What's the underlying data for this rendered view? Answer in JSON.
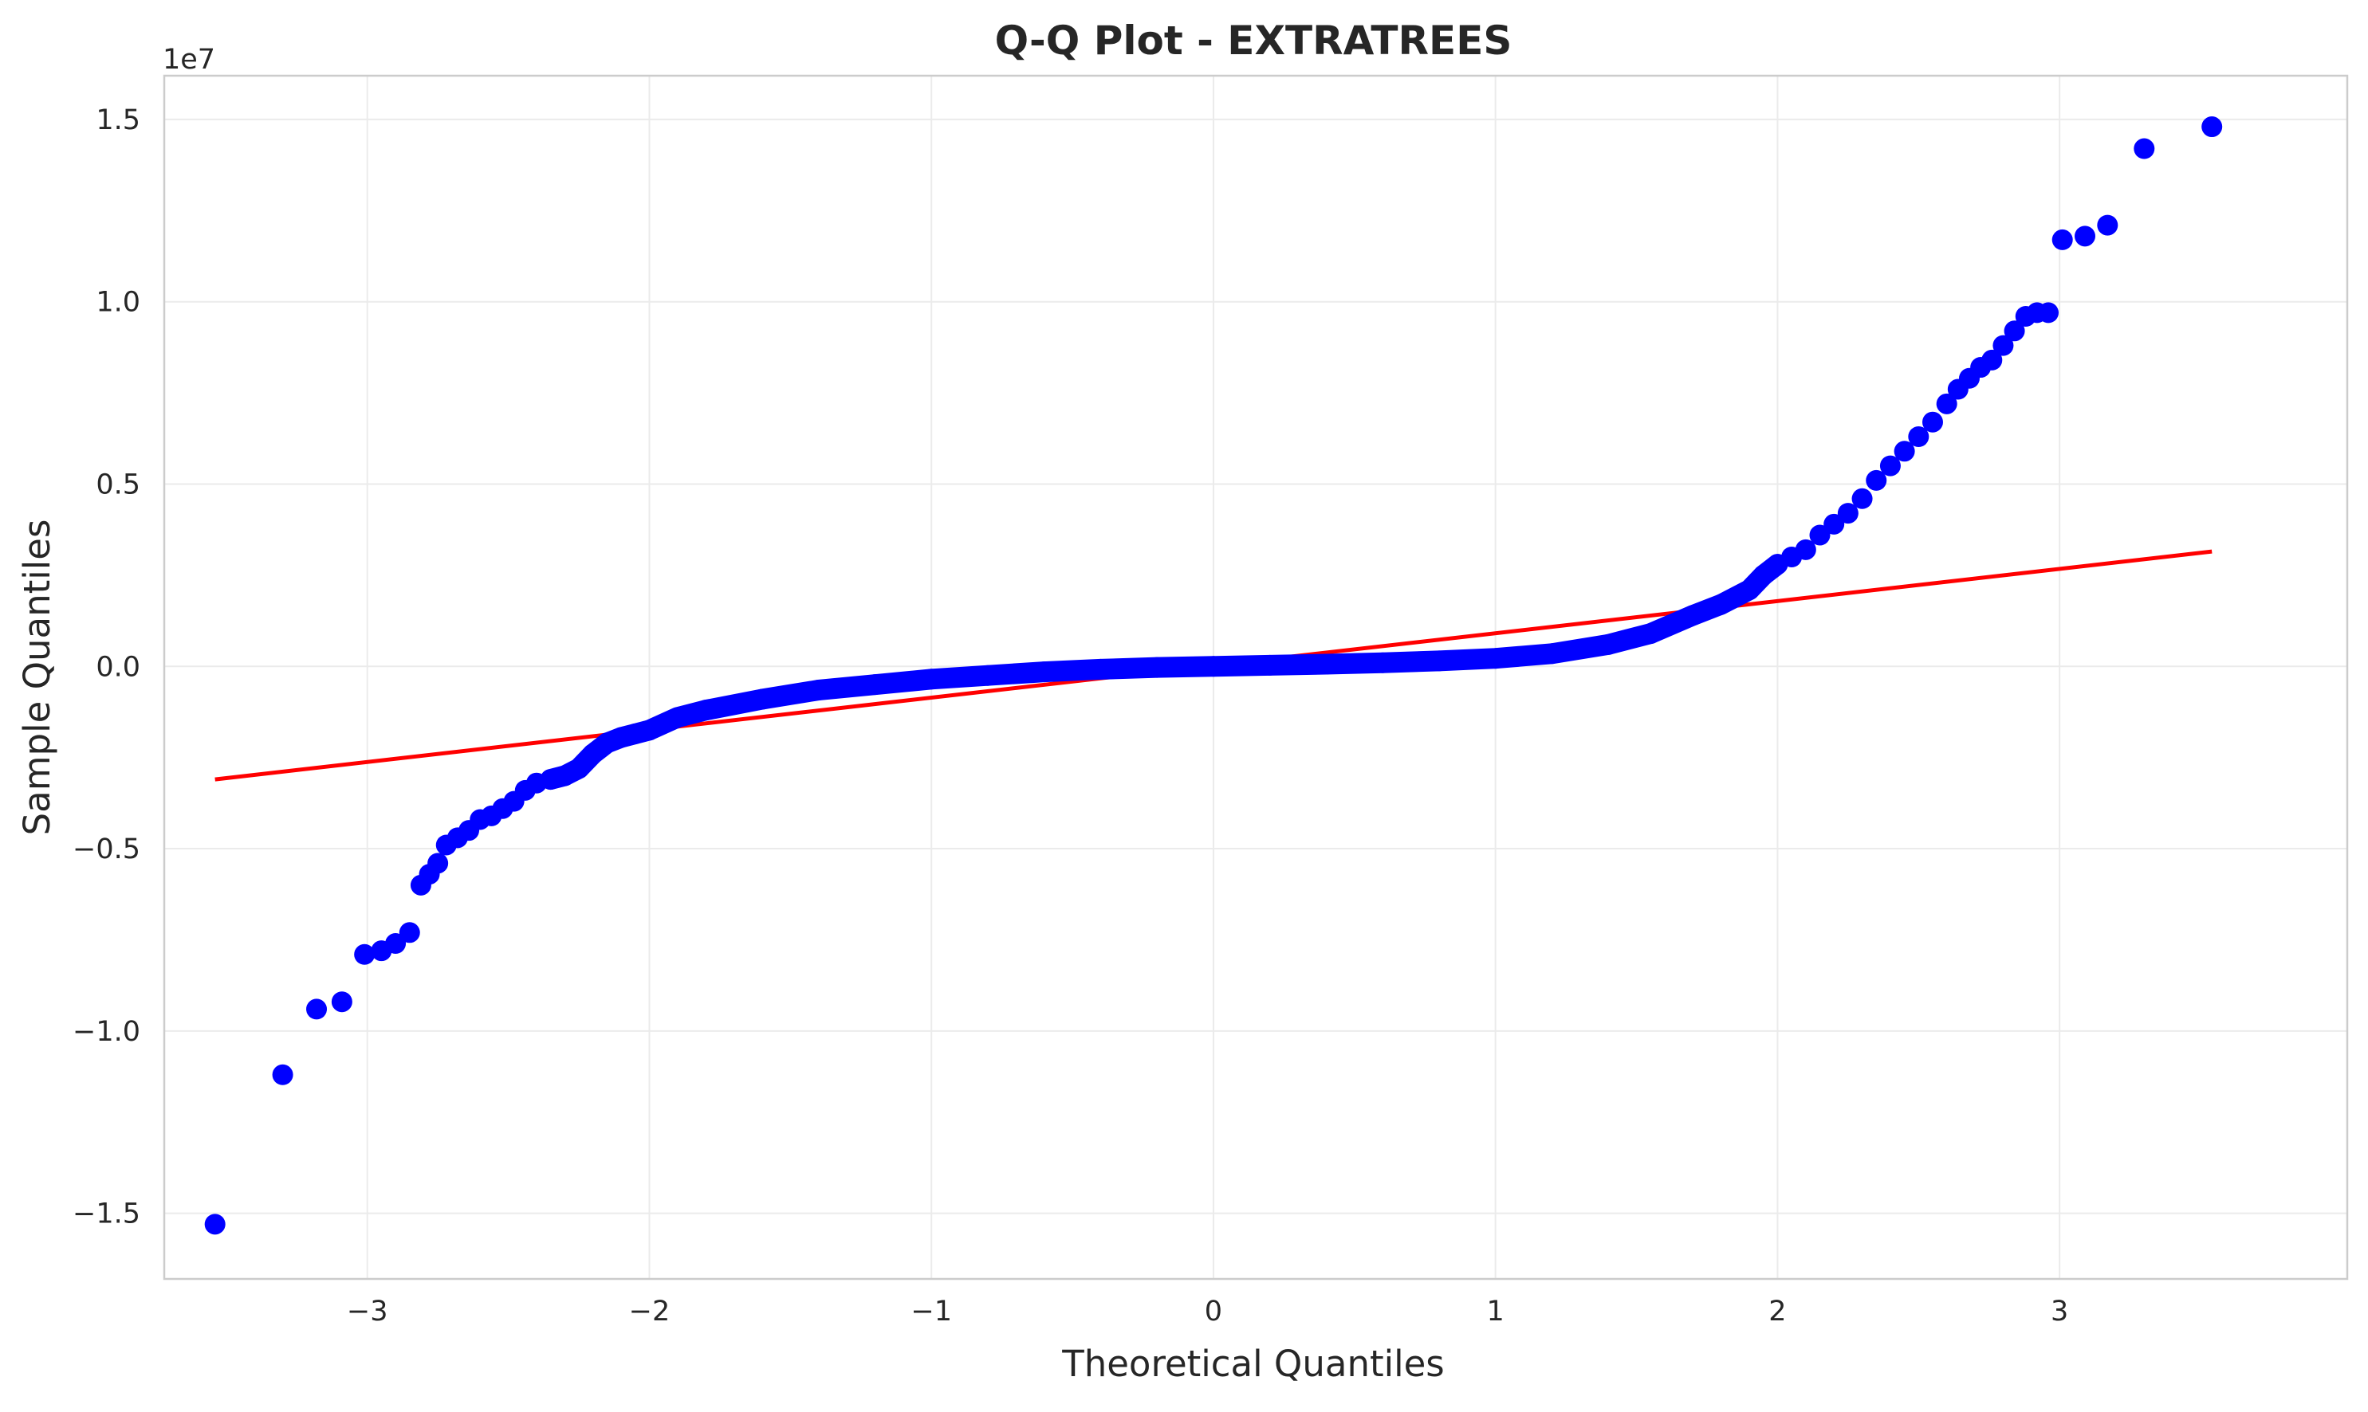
{
  "chart_data": {
    "type": "scatter",
    "title": "Q-Q Plot - EXTRATREES",
    "xlabel": "Theoretical Quantiles",
    "ylabel": "Sample Quantiles",
    "y_offset_label": "1e7",
    "xlim": [
      -3.72,
      4.02
    ],
    "ylim": [
      -16.8,
      16.2
    ],
    "y_units": "1e6",
    "xticks": [
      -3,
      -2,
      -1,
      0,
      1,
      2,
      3
    ],
    "xtick_labels": [
      "−3",
      "−2",
      "−1",
      "0",
      "1",
      "2",
      "3"
    ],
    "yticks": [
      -15,
      -10,
      -5,
      0,
      5,
      10,
      15
    ],
    "ytick_labels": [
      "−1.5",
      "−1.0",
      "−0.5",
      "0.0",
      "0.5",
      "1.0",
      "1.5"
    ],
    "grid": true,
    "colors": {
      "points": "#0000ff",
      "line": "#ff0000",
      "grid": "#ebebeb",
      "frame": "#cccccc"
    },
    "series": [
      {
        "kind": "points",
        "x": [
          -3.54,
          -3.3,
          -3.18,
          -3.09,
          -3.01,
          -2.95,
          -2.9,
          -2.85,
          -2.81,
          -2.78,
          -2.75,
          -2.72,
          -2.68,
          -2.64,
          -2.6,
          -2.56,
          -2.52,
          -2.48,
          -2.44,
          -2.4,
          -2.35,
          -2.3,
          -2.25,
          -2.2,
          -2.15,
          -2.1,
          -2.05,
          -2.0,
          -1.9,
          -1.8,
          -1.6,
          -1.4,
          -1.2,
          -1.0,
          -0.8,
          -0.6,
          -0.4,
          -0.2,
          0.0,
          0.2,
          0.4,
          0.6,
          0.8,
          1.0,
          1.2,
          1.4,
          1.55,
          1.7,
          1.8,
          1.9,
          1.95,
          2.0,
          2.05,
          2.1,
          2.15,
          2.2,
          2.25,
          2.3,
          2.35,
          2.4,
          2.45,
          2.5,
          2.55,
          2.6,
          2.64,
          2.68,
          2.72,
          2.76,
          2.8,
          2.84,
          2.88,
          2.92,
          2.96,
          3.01,
          3.09,
          3.17,
          3.3,
          3.54
        ],
        "y": [
          -15.3,
          -11.2,
          -9.4,
          -9.2,
          -7.9,
          -7.8,
          -7.6,
          -7.3,
          -6.0,
          -5.7,
          -5.4,
          -4.9,
          -4.7,
          -4.5,
          -4.2,
          -4.1,
          -3.9,
          -3.7,
          -3.4,
          -3.2,
          -3.1,
          -3.0,
          -2.8,
          -2.4,
          -2.1,
          -1.95,
          -1.85,
          -1.75,
          -1.4,
          -1.2,
          -0.9,
          -0.65,
          -0.5,
          -0.35,
          -0.25,
          -0.15,
          -0.08,
          -0.03,
          0.0,
          0.03,
          0.06,
          0.1,
          0.15,
          0.22,
          0.35,
          0.6,
          0.9,
          1.4,
          1.7,
          2.1,
          2.5,
          2.8,
          3.0,
          3.2,
          3.6,
          3.9,
          4.2,
          4.6,
          5.1,
          5.5,
          5.9,
          6.3,
          6.7,
          7.2,
          7.6,
          7.9,
          8.2,
          8.4,
          8.8,
          9.2,
          9.6,
          9.7,
          9.7,
          11.7,
          11.8,
          12.1,
          14.2,
          14.8
        ]
      },
      {
        "kind": "line",
        "x": [
          -3.54,
          3.54
        ],
        "y": [
          -3.1,
          3.15
        ]
      }
    ]
  }
}
